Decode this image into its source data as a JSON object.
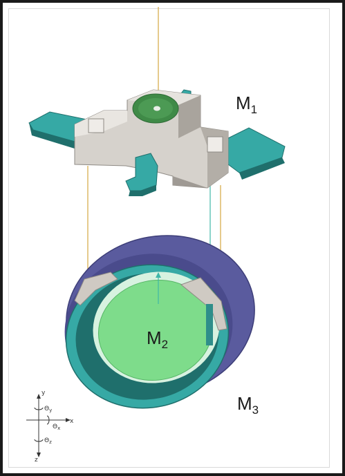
{
  "labels": {
    "m1": {
      "main": "M",
      "sub": "1"
    },
    "m2": {
      "main": "M",
      "sub": "2"
    },
    "m3": {
      "main": "M",
      "sub": "3"
    }
  },
  "axes": {
    "y": "y",
    "x": "x",
    "z": "z",
    "theta_y": {
      "main": "Θ",
      "sub": "y"
    },
    "theta_x": {
      "main": "Θ",
      "sub": "x"
    },
    "theta_z": {
      "main": "Θ",
      "sub": "z"
    }
  },
  "colors": {
    "frame": "#1a1a1a",
    "gray_body": "#d6d2cc",
    "gray_dark": "#9f9a94",
    "teal": "#36a9a5",
    "teal_dark": "#1f6f6c",
    "green_disc": "#3f8a47",
    "green_inner": "#7edc8b",
    "purple": "#5a5b9e",
    "purple_dark": "#3d3e78",
    "wire": "#d4a640"
  }
}
